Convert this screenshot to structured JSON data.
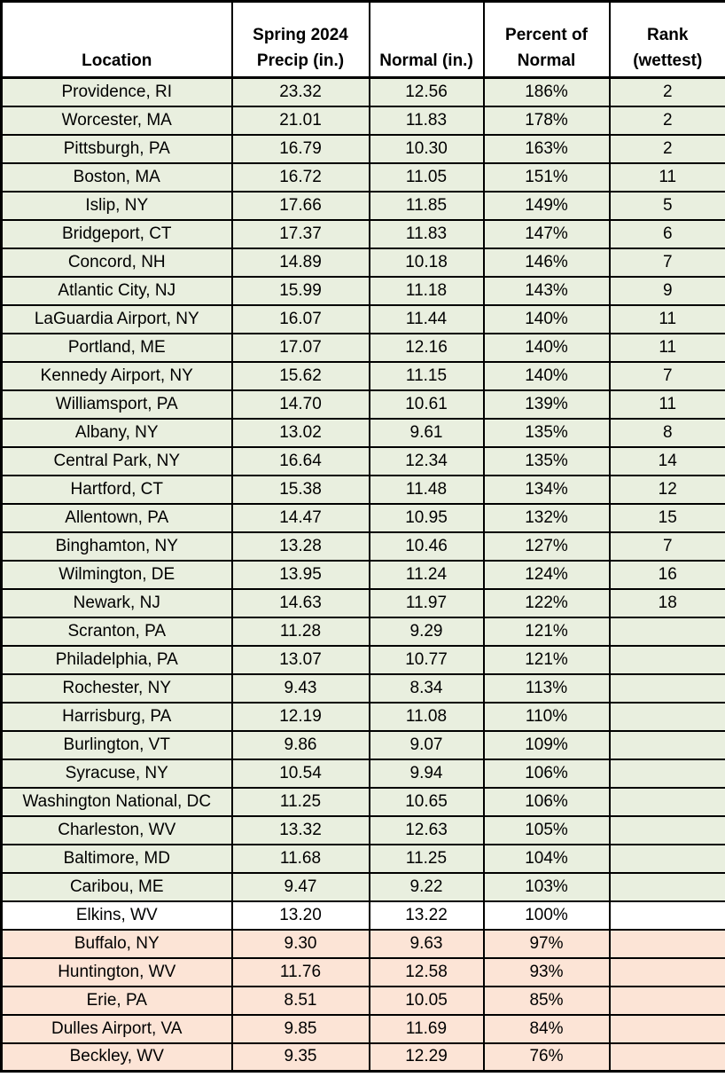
{
  "colors": {
    "above": "#E9EFDF",
    "equal": "#FFFFFF",
    "below": "#FCE4D6",
    "border": "#000000",
    "text": "#000000"
  },
  "chart_data": {
    "type": "table",
    "columns": [
      {
        "id": "location",
        "lines": [
          "Location"
        ]
      },
      {
        "id": "precip",
        "lines": [
          "Spring 2024",
          "Precip (in.)"
        ]
      },
      {
        "id": "normal",
        "lines": [
          "Normal (in.)"
        ]
      },
      {
        "id": "percent",
        "lines": [
          "Percent of",
          "Normal"
        ]
      },
      {
        "id": "rank",
        "lines": [
          "Rank",
          "(wettest)"
        ]
      }
    ],
    "rows": [
      {
        "location": "Providence, RI",
        "precip": "23.32",
        "normal": "12.56",
        "percent": "186%",
        "rank": "2",
        "band": "above"
      },
      {
        "location": "Worcester, MA",
        "precip": "21.01",
        "normal": "11.83",
        "percent": "178%",
        "rank": "2",
        "band": "above"
      },
      {
        "location": "Pittsburgh, PA",
        "precip": "16.79",
        "normal": "10.30",
        "percent": "163%",
        "rank": "2",
        "band": "above"
      },
      {
        "location": "Boston, MA",
        "precip": "16.72",
        "normal": "11.05",
        "percent": "151%",
        "rank": "11",
        "band": "above"
      },
      {
        "location": "Islip, NY",
        "precip": "17.66",
        "normal": "11.85",
        "percent": "149%",
        "rank": "5",
        "band": "above"
      },
      {
        "location": "Bridgeport, CT",
        "precip": "17.37",
        "normal": "11.83",
        "percent": "147%",
        "rank": "6",
        "band": "above"
      },
      {
        "location": "Concord, NH",
        "precip": "14.89",
        "normal": "10.18",
        "percent": "146%",
        "rank": "7",
        "band": "above"
      },
      {
        "location": "Atlantic City, NJ",
        "precip": "15.99",
        "normal": "11.18",
        "percent": "143%",
        "rank": "9",
        "band": "above"
      },
      {
        "location": "LaGuardia Airport, NY",
        "precip": "16.07",
        "normal": "11.44",
        "percent": "140%",
        "rank": "11",
        "band": "above"
      },
      {
        "location": "Portland, ME",
        "precip": "17.07",
        "normal": "12.16",
        "percent": "140%",
        "rank": "11",
        "band": "above"
      },
      {
        "location": "Kennedy Airport, NY",
        "precip": "15.62",
        "normal": "11.15",
        "percent": "140%",
        "rank": "7",
        "band": "above"
      },
      {
        "location": "Williamsport, PA",
        "precip": "14.70",
        "normal": "10.61",
        "percent": "139%",
        "rank": "11",
        "band": "above"
      },
      {
        "location": "Albany, NY",
        "precip": "13.02",
        "normal": "9.61",
        "percent": "135%",
        "rank": "8",
        "band": "above"
      },
      {
        "location": "Central Park, NY",
        "precip": "16.64",
        "normal": "12.34",
        "percent": "135%",
        "rank": "14",
        "band": "above"
      },
      {
        "location": "Hartford, CT",
        "precip": "15.38",
        "normal": "11.48",
        "percent": "134%",
        "rank": "12",
        "band": "above"
      },
      {
        "location": "Allentown, PA",
        "precip": "14.47",
        "normal": "10.95",
        "percent": "132%",
        "rank": "15",
        "band": "above"
      },
      {
        "location": "Binghamton, NY",
        "precip": "13.28",
        "normal": "10.46",
        "percent": "127%",
        "rank": "7",
        "band": "above"
      },
      {
        "location": "Wilmington, DE",
        "precip": "13.95",
        "normal": "11.24",
        "percent": "124%",
        "rank": "16",
        "band": "above"
      },
      {
        "location": "Newark, NJ",
        "precip": "14.63",
        "normal": "11.97",
        "percent": "122%",
        "rank": "18",
        "band": "above"
      },
      {
        "location": "Scranton, PA",
        "precip": "11.28",
        "normal": "9.29",
        "percent": "121%",
        "rank": "",
        "band": "above"
      },
      {
        "location": "Philadelphia, PA",
        "precip": "13.07",
        "normal": "10.77",
        "percent": "121%",
        "rank": "",
        "band": "above"
      },
      {
        "location": "Rochester, NY",
        "precip": "9.43",
        "normal": "8.34",
        "percent": "113%",
        "rank": "",
        "band": "above"
      },
      {
        "location": "Harrisburg, PA",
        "precip": "12.19",
        "normal": "11.08",
        "percent": "110%",
        "rank": "",
        "band": "above"
      },
      {
        "location": "Burlington, VT",
        "precip": "9.86",
        "normal": "9.07",
        "percent": "109%",
        "rank": "",
        "band": "above"
      },
      {
        "location": "Syracuse, NY",
        "precip": "10.54",
        "normal": "9.94",
        "percent": "106%",
        "rank": "",
        "band": "above"
      },
      {
        "location": "Washington National, DC",
        "precip": "11.25",
        "normal": "10.65",
        "percent": "106%",
        "rank": "",
        "band": "above"
      },
      {
        "location": "Charleston, WV",
        "precip": "13.32",
        "normal": "12.63",
        "percent": "105%",
        "rank": "",
        "band": "above"
      },
      {
        "location": "Baltimore, MD",
        "precip": "11.68",
        "normal": "11.25",
        "percent": "104%",
        "rank": "",
        "band": "above"
      },
      {
        "location": "Caribou, ME",
        "precip": "9.47",
        "normal": "9.22",
        "percent": "103%",
        "rank": "",
        "band": "above"
      },
      {
        "location": "Elkins, WV",
        "precip": "13.20",
        "normal": "13.22",
        "percent": "100%",
        "rank": "",
        "band": "equal"
      },
      {
        "location": "Buffalo, NY",
        "precip": "9.30",
        "normal": "9.63",
        "percent": "97%",
        "rank": "",
        "band": "below"
      },
      {
        "location": "Huntington, WV",
        "precip": "11.76",
        "normal": "12.58",
        "percent": "93%",
        "rank": "",
        "band": "below"
      },
      {
        "location": "Erie, PA",
        "precip": "8.51",
        "normal": "10.05",
        "percent": "85%",
        "rank": "",
        "band": "below"
      },
      {
        "location": "Dulles Airport, VA",
        "precip": "9.85",
        "normal": "11.69",
        "percent": "84%",
        "rank": "",
        "band": "below"
      },
      {
        "location": "Beckley, WV",
        "precip": "9.35",
        "normal": "12.29",
        "percent": "76%",
        "rank": "",
        "band": "below"
      }
    ]
  }
}
